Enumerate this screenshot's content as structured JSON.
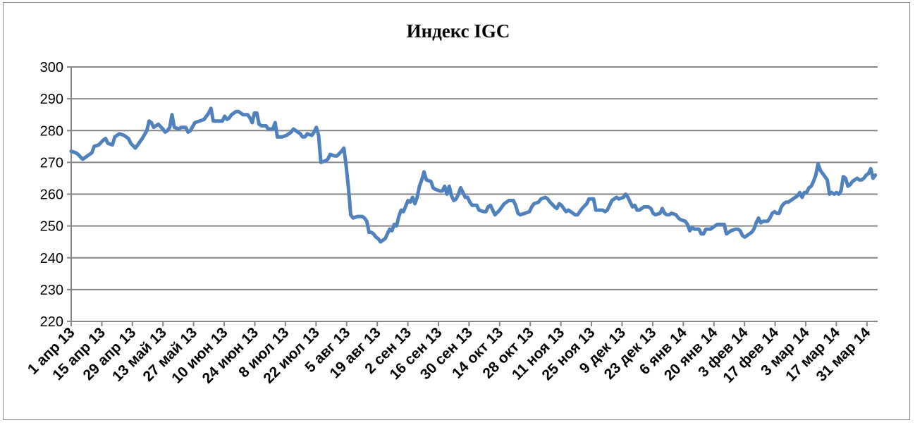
{
  "chart_data": {
    "type": "line",
    "title": "Индекс IGC",
    "xlabel": "",
    "ylabel": "",
    "ylim": [
      220,
      300
    ],
    "yticks": [
      220,
      230,
      240,
      250,
      260,
      270,
      280,
      290,
      300
    ],
    "grid": "horizontal",
    "legend": "none",
    "line_color": "#4f81bd",
    "grid_color": "#868686",
    "x_tick_labels": [
      "1 апр 13",
      "15 апр 13",
      "29 апр 13",
      "13 май 13",
      "27 май 13",
      "10 июн 13",
      "24 июн 13",
      "8 июл 13",
      "22 июл 13",
      "5 авг 13",
      "19 авг 13",
      "2 сен 13",
      "16 сен 13",
      "30 сен 13",
      "14 окт 13",
      "28 окт 13",
      "11 ноя 13",
      "25 ноя 13",
      "9 дек 13",
      "23 дек 13",
      "6 янв 14",
      "20 янв 14",
      "3 фев 14",
      "17 фев 14",
      "3 мар 14",
      "17 мар 14",
      "31 мар 14"
    ],
    "series": [
      {
        "values": [
          [
            0,
            273.5
          ],
          [
            2,
            273
          ],
          [
            3,
            272.5
          ],
          [
            5,
            271
          ],
          [
            7,
            272
          ],
          [
            9,
            273
          ],
          [
            10,
            275
          ],
          [
            12,
            275.5
          ],
          [
            14,
            277
          ],
          [
            15,
            277.5
          ],
          [
            16,
            276
          ],
          [
            18,
            275.5
          ],
          [
            19,
            278
          ],
          [
            21,
            279
          ],
          [
            23,
            278.5
          ],
          [
            25,
            277.5
          ],
          [
            26,
            276
          ],
          [
            28,
            274.5
          ],
          [
            29,
            275.5
          ],
          [
            31,
            277.5
          ],
          [
            33,
            280
          ],
          [
            34,
            283
          ],
          [
            35,
            282.5
          ],
          [
            36,
            281
          ],
          [
            38,
            282
          ],
          [
            40,
            280.5
          ],
          [
            41,
            279.5
          ],
          [
            42,
            280
          ],
          [
            43,
            281
          ],
          [
            44,
            285
          ],
          [
            45,
            281
          ],
          [
            47,
            280.5
          ],
          [
            48,
            281
          ],
          [
            50,
            281
          ],
          [
            51,
            279.5
          ],
          [
            52,
            280
          ],
          [
            54,
            282.5
          ],
          [
            56,
            283
          ],
          [
            58,
            283.5
          ],
          [
            60,
            285.5
          ],
          [
            61,
            287
          ],
          [
            62,
            283
          ],
          [
            64,
            283
          ],
          [
            66,
            283
          ],
          [
            67,
            284.5
          ],
          [
            68,
            283.5
          ],
          [
            69,
            284
          ],
          [
            70,
            285
          ],
          [
            72,
            286
          ],
          [
            73,
            286
          ],
          [
            75,
            285
          ],
          [
            77,
            285
          ],
          [
            78,
            284
          ],
          [
            79,
            282.5
          ],
          [
            80,
            285.5
          ],
          [
            81,
            285.5
          ],
          [
            82,
            282
          ],
          [
            83,
            281.5
          ],
          [
            85,
            281.5
          ],
          [
            86,
            280.5
          ],
          [
            88,
            280.5
          ],
          [
            89,
            282.5
          ],
          [
            90,
            278
          ],
          [
            92,
            278
          ],
          [
            94,
            278.5
          ],
          [
            96,
            279.5
          ],
          [
            97,
            280.5
          ],
          [
            98,
            280
          ],
          [
            100,
            279
          ],
          [
            101,
            278
          ],
          [
            102,
            278
          ],
          [
            103,
            279
          ],
          [
            105,
            278.5
          ],
          [
            106,
            279.5
          ],
          [
            107,
            281
          ],
          [
            108,
            278.5
          ],
          [
            109,
            270
          ],
          [
            111,
            270.5
          ],
          [
            112,
            271
          ],
          [
            113,
            272.5
          ],
          [
            115,
            272
          ],
          [
            116,
            272
          ],
          [
            118,
            273.5
          ],
          [
            119,
            274.5
          ],
          [
            120,
            269
          ],
          [
            121,
            262
          ],
          [
            122,
            253.5
          ],
          [
            123,
            252.5
          ],
          [
            125,
            253
          ],
          [
            127,
            253
          ],
          [
            128,
            252.5
          ],
          [
            129,
            251.5
          ],
          [
            130,
            248
          ],
          [
            131,
            248
          ],
          [
            132,
            247.5
          ],
          [
            133,
            246.5
          ],
          [
            134,
            246
          ],
          [
            135,
            245
          ],
          [
            137,
            246
          ],
          [
            138,
            247.5
          ],
          [
            139,
            249
          ],
          [
            140,
            248.5
          ],
          [
            141,
            250.5
          ],
          [
            142,
            250
          ],
          [
            143,
            253
          ],
          [
            144,
            255
          ],
          [
            145,
            254.5
          ],
          [
            147,
            258
          ],
          [
            148,
            257.5
          ],
          [
            149,
            259
          ],
          [
            150,
            257
          ],
          [
            151,
            259
          ],
          [
            152,
            262.5
          ],
          [
            153,
            264.5
          ],
          [
            154,
            267
          ],
          [
            155,
            264.5
          ],
          [
            157,
            264
          ],
          [
            158,
            262
          ],
          [
            159,
            261.5
          ],
          [
            161,
            261
          ],
          [
            162,
            261
          ],
          [
            163,
            262.5
          ],
          [
            164,
            260
          ],
          [
            165,
            262.5
          ],
          [
            166,
            259.5
          ],
          [
            167,
            258
          ],
          [
            168,
            258.5
          ],
          [
            169,
            260
          ],
          [
            170,
            262
          ],
          [
            171,
            260.5
          ],
          [
            172,
            259
          ],
          [
            173,
            259
          ],
          [
            174,
            257.5
          ],
          [
            175,
            256.5
          ],
          [
            176,
            256.5
          ],
          [
            177,
            256.5
          ],
          [
            178,
            255
          ],
          [
            180,
            254.5
          ],
          [
            181,
            254.5
          ],
          [
            182,
            256
          ],
          [
            183,
            256.5
          ],
          [
            184,
            255
          ],
          [
            185,
            253.5
          ],
          [
            187,
            255
          ],
          [
            188,
            256
          ],
          [
            189,
            257
          ],
          [
            190,
            257.5
          ],
          [
            191,
            258
          ],
          [
            193,
            258
          ],
          [
            194,
            256.5
          ],
          [
            195,
            254
          ],
          [
            196,
            253.5
          ],
          [
            198,
            254
          ],
          [
            200,
            254.5
          ],
          [
            201,
            256
          ],
          [
            202,
            257
          ],
          [
            204,
            257.5
          ],
          [
            205,
            258.5
          ],
          [
            207,
            259
          ],
          [
            208,
            258.5
          ],
          [
            209,
            257.5
          ],
          [
            211,
            256
          ],
          [
            212,
            255.5
          ],
          [
            213,
            257
          ],
          [
            214,
            256.5
          ],
          [
            216,
            254.5
          ],
          [
            217,
            255
          ],
          [
            219,
            254
          ],
          [
            220,
            253.5
          ],
          [
            221,
            253.5
          ],
          [
            222,
            254.5
          ],
          [
            223,
            255.5
          ],
          [
            225,
            257
          ],
          [
            226,
            258.5
          ],
          [
            227,
            258.5
          ],
          [
            228,
            258.5
          ],
          [
            229,
            255
          ],
          [
            231,
            255
          ],
          [
            232,
            255
          ],
          [
            233,
            254.5
          ],
          [
            234,
            255
          ],
          [
            236,
            258
          ],
          [
            237,
            258.5
          ],
          [
            238,
            259
          ],
          [
            239,
            258.5
          ],
          [
            241,
            259
          ],
          [
            242,
            260
          ],
          [
            243,
            259
          ],
          [
            244,
            257.5
          ],
          [
            245,
            256
          ],
          [
            246,
            256.5
          ],
          [
            247,
            255
          ],
          [
            248,
            255
          ],
          [
            250,
            256
          ],
          [
            252,
            256
          ],
          [
            253,
            255.5
          ],
          [
            254,
            254
          ],
          [
            255,
            253.5
          ],
          [
            257,
            254
          ],
          [
            258,
            255.5
          ],
          [
            259,
            254
          ],
          [
            260,
            253.5
          ],
          [
            261,
            253.5
          ],
          [
            262,
            254
          ],
          [
            264,
            253.5
          ],
          [
            265,
            252.5
          ],
          [
            266,
            252
          ],
          [
            268,
            251.5
          ],
          [
            269,
            250.5
          ],
          [
            270,
            248.5
          ],
          [
            271,
            249.5
          ],
          [
            272,
            249
          ],
          [
            274,
            249
          ],
          [
            275,
            247.5
          ],
          [
            276,
            247.5
          ],
          [
            277,
            249
          ],
          [
            279,
            249
          ],
          [
            280,
            249.5
          ],
          [
            282,
            250.5
          ],
          [
            284,
            250.5
          ],
          [
            285,
            250.5
          ],
          [
            286,
            247.5
          ],
          [
            287,
            248
          ],
          [
            288,
            248.5
          ],
          [
            290,
            249
          ],
          [
            291,
            249
          ],
          [
            292,
            248.5
          ],
          [
            293,
            247
          ],
          [
            294,
            246.5
          ],
          [
            295,
            247
          ],
          [
            296,
            247.5
          ],
          [
            297,
            248
          ],
          [
            298,
            249
          ],
          [
            299,
            251
          ],
          [
            300,
            252.5
          ],
          [
            301,
            251
          ],
          [
            302,
            251.5
          ],
          [
            303,
            251.5
          ],
          [
            304,
            251.5
          ],
          [
            305,
            252.5
          ],
          [
            306,
            254
          ],
          [
            307,
            254.5
          ],
          [
            308,
            254
          ],
          [
            309,
            254
          ],
          [
            310,
            256
          ],
          [
            311,
            257
          ],
          [
            312,
            257.5
          ],
          [
            313,
            257.5
          ],
          [
            314,
            258
          ],
          [
            315,
            258.5
          ],
          [
            316,
            259
          ],
          [
            317,
            259.5
          ],
          [
            318,
            260.5
          ],
          [
            319,
            259
          ],
          [
            320,
            260.5
          ],
          [
            321,
            260.5
          ],
          [
            322,
            262
          ],
          [
            323,
            262.5
          ],
          [
            324,
            264
          ],
          [
            325,
            266
          ],
          [
            326,
            269.5
          ],
          [
            327,
            267.5
          ],
          [
            328,
            266.5
          ],
          [
            329,
            265.5
          ],
          [
            330,
            264.5
          ],
          [
            331,
            260
          ],
          [
            332,
            260.5
          ],
          [
            333,
            260
          ],
          [
            334,
            260.5
          ],
          [
            335,
            260
          ],
          [
            336,
            261
          ],
          [
            337,
            265.5
          ],
          [
            338,
            265
          ],
          [
            339,
            262.5
          ],
          [
            340,
            263
          ],
          [
            341,
            264
          ],
          [
            342,
            264.5
          ],
          [
            343,
            265
          ],
          [
            344,
            264.5
          ],
          [
            345,
            264.5
          ],
          [
            346,
            265
          ],
          [
            347,
            266
          ],
          [
            348,
            266.5
          ],
          [
            349,
            268
          ],
          [
            350,
            265
          ],
          [
            351,
            266
          ]
        ]
      }
    ]
  }
}
